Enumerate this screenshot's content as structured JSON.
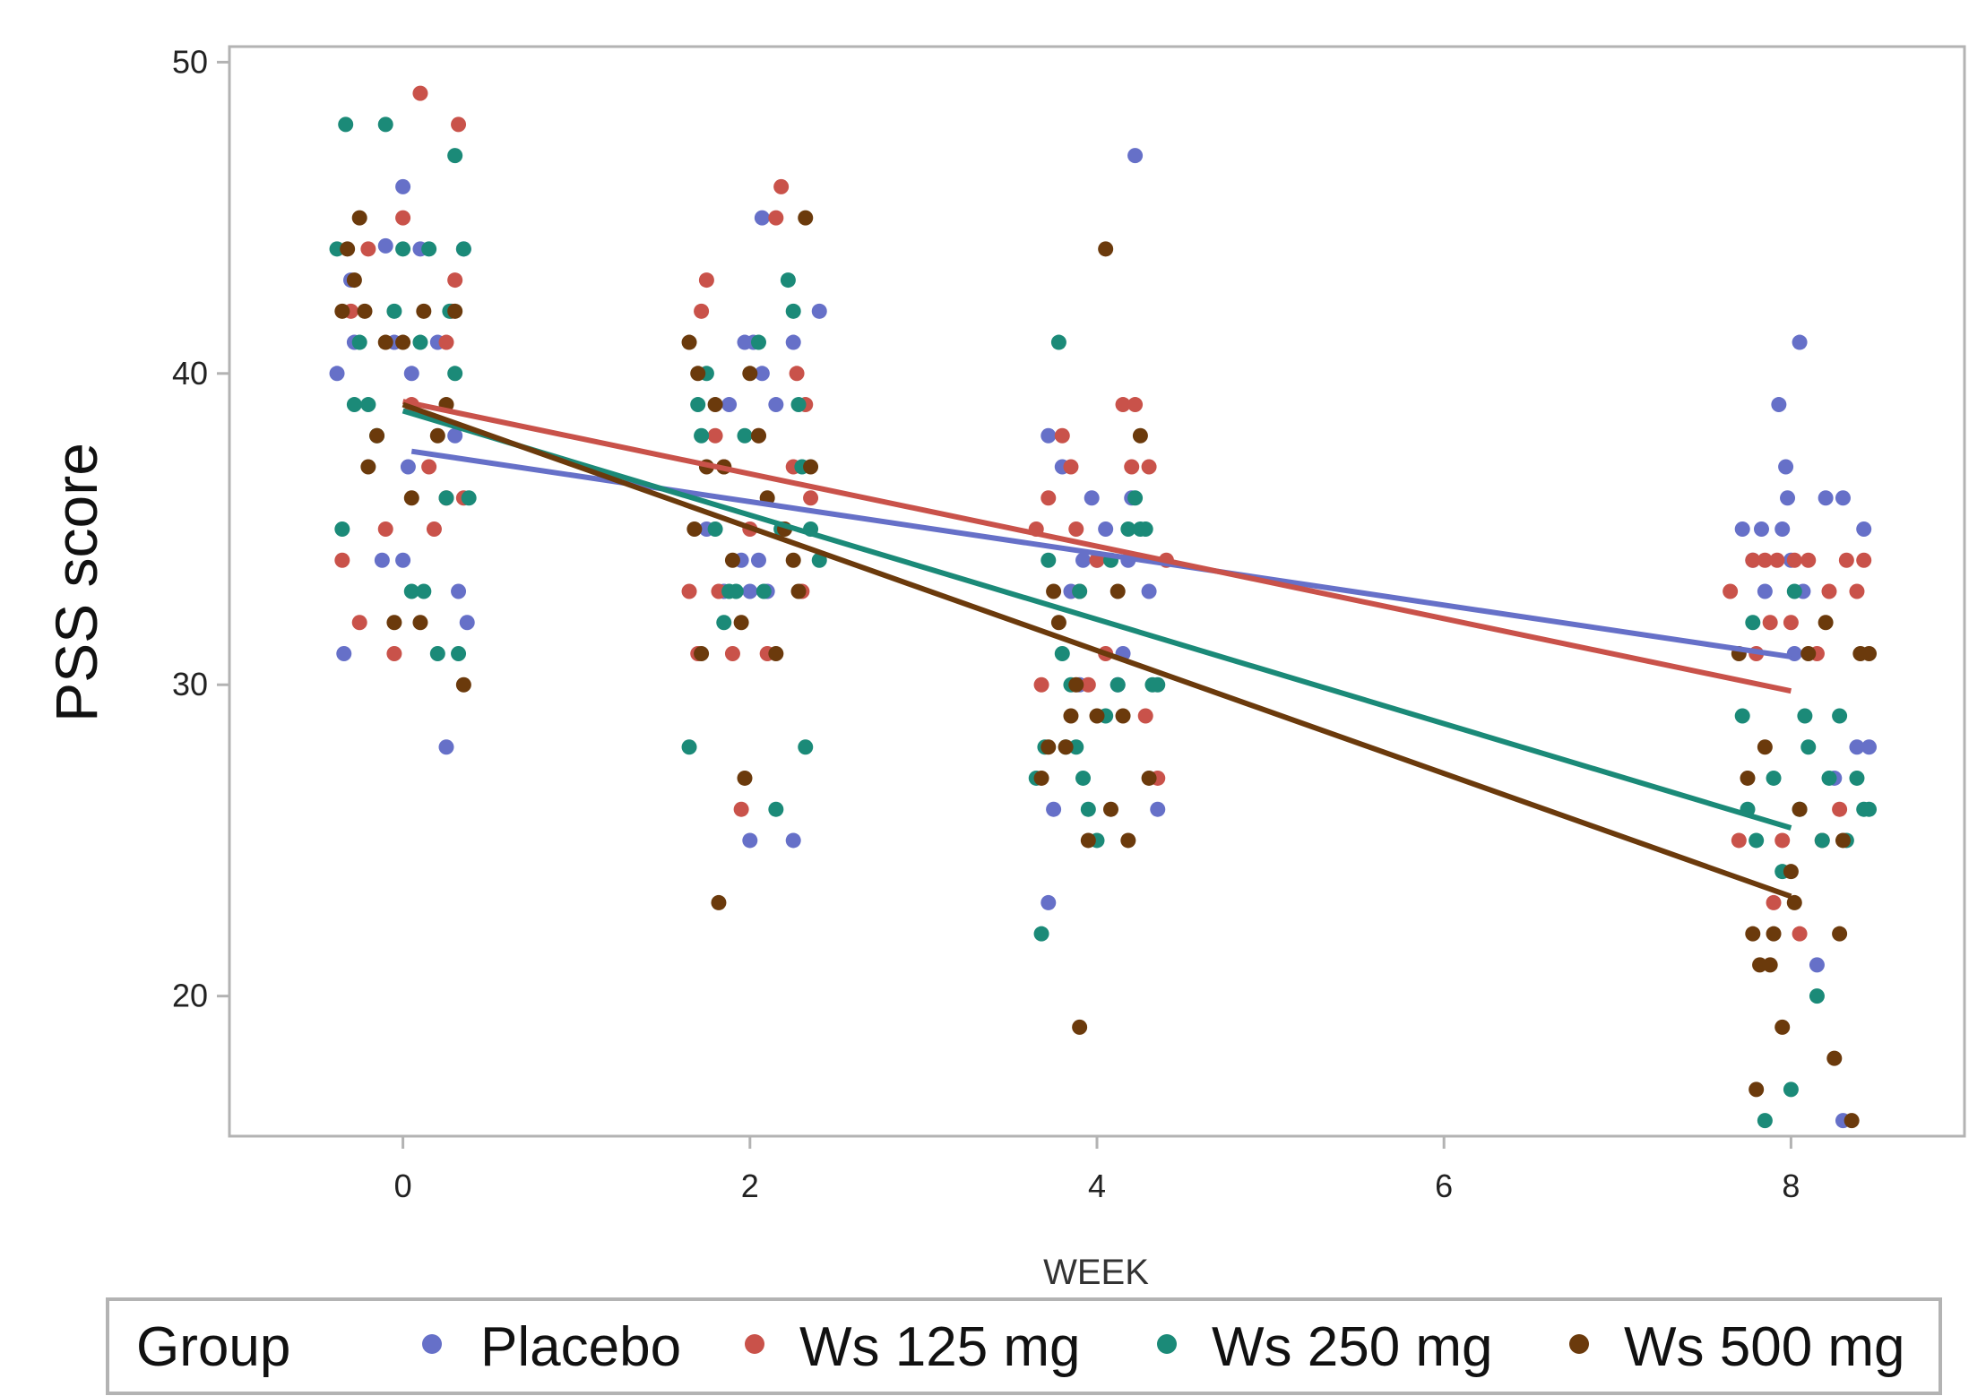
{
  "chart_data": {
    "type": "scatter",
    "xlabel": "WEEK",
    "ylabel": "PSS score",
    "xlim": [
      -1,
      9
    ],
    "ylim": [
      15.5,
      50.5
    ],
    "x_ticks": [
      "0",
      "2",
      "4",
      "6",
      "8"
    ],
    "y_ticks": [
      "20",
      "30",
      "40",
      "50"
    ],
    "grid": false,
    "legend": {
      "title": "Group",
      "placement": "bottom",
      "entries": [
        "Placebo",
        "Ws 125 mg",
        "Ws 250 mg",
        "Ws 500 mg"
      ]
    },
    "series": [
      {
        "name": "Placebo",
        "color": "#6670c8",
        "fit": [
          [
            0.05,
            37.5
          ],
          [
            8.0,
            30.9
          ]
        ],
        "points": [
          [
            -0.38,
            40
          ],
          [
            -0.34,
            31
          ],
          [
            -0.3,
            43
          ],
          [
            -0.28,
            41
          ],
          [
            -0.12,
            34
          ],
          [
            -0.1,
            44.1
          ],
          [
            -0.05,
            41
          ],
          [
            0.0,
            34
          ],
          [
            0.0,
            46
          ],
          [
            0.03,
            37
          ],
          [
            0.05,
            40
          ],
          [
            0.1,
            44
          ],
          [
            0.2,
            41
          ],
          [
            0.25,
            28
          ],
          [
            0.3,
            38
          ],
          [
            0.32,
            33
          ],
          [
            0.37,
            32
          ],
          [
            0.35,
            44
          ],
          [
            1.75,
            35
          ],
          [
            1.85,
            33
          ],
          [
            1.88,
            39
          ],
          [
            1.95,
            34
          ],
          [
            1.97,
            41
          ],
          [
            2.0,
            33
          ],
          [
            2.0,
            25
          ],
          [
            2.02,
            41
          ],
          [
            2.05,
            34
          ],
          [
            2.07,
            40
          ],
          [
            2.07,
            45
          ],
          [
            2.1,
            33
          ],
          [
            2.15,
            39
          ],
          [
            2.25,
            41
          ],
          [
            2.25,
            25
          ],
          [
            2.4,
            42
          ],
          [
            3.72,
            38
          ],
          [
            3.75,
            26
          ],
          [
            3.72,
            23
          ],
          [
            3.8,
            37
          ],
          [
            3.85,
            33
          ],
          [
            3.9,
            30
          ],
          [
            3.92,
            34
          ],
          [
            3.97,
            36
          ],
          [
            4.0,
            34
          ],
          [
            4.05,
            35
          ],
          [
            4.12,
            30
          ],
          [
            4.15,
            31
          ],
          [
            4.2,
            36
          ],
          [
            4.22,
            47
          ],
          [
            4.3,
            33
          ],
          [
            4.35,
            26
          ],
          [
            4.18,
            34
          ],
          [
            7.72,
            35
          ],
          [
            7.78,
            34
          ],
          [
            7.83,
            35
          ],
          [
            7.85,
            33
          ],
          [
            7.93,
            39
          ],
          [
            7.95,
            35
          ],
          [
            7.97,
            37
          ],
          [
            7.98,
            36
          ],
          [
            8.0,
            34
          ],
          [
            8.02,
            31
          ],
          [
            8.05,
            41
          ],
          [
            8.07,
            33
          ],
          [
            8.15,
            21
          ],
          [
            8.2,
            36
          ],
          [
            8.25,
            27
          ],
          [
            8.3,
            36
          ],
          [
            8.3,
            16
          ],
          [
            8.38,
            28
          ],
          [
            8.42,
            35
          ],
          [
            8.45,
            28
          ]
        ]
      },
      {
        "name": "Ws 125 mg",
        "color": "#c9524a",
        "fit": [
          [
            0.0,
            39.1
          ],
          [
            8.0,
            29.8
          ]
        ],
        "points": [
          [
            -0.35,
            34
          ],
          [
            -0.3,
            42
          ],
          [
            -0.25,
            32
          ],
          [
            -0.2,
            44
          ],
          [
            -0.1,
            35
          ],
          [
            -0.05,
            31
          ],
          [
            0.0,
            45
          ],
          [
            0.05,
            39
          ],
          [
            0.1,
            49
          ],
          [
            0.15,
            37
          ],
          [
            0.18,
            35
          ],
          [
            0.25,
            36
          ],
          [
            0.25,
            41
          ],
          [
            0.28,
            42
          ],
          [
            0.3,
            43
          ],
          [
            0.32,
            48
          ],
          [
            0.35,
            36
          ],
          [
            1.65,
            33
          ],
          [
            1.7,
            31
          ],
          [
            1.72,
            42
          ],
          [
            1.75,
            43
          ],
          [
            1.8,
            38
          ],
          [
            1.82,
            33
          ],
          [
            1.85,
            37
          ],
          [
            1.9,
            31
          ],
          [
            1.95,
            26
          ],
          [
            2.0,
            35
          ],
          [
            2.05,
            38
          ],
          [
            2.1,
            31
          ],
          [
            2.15,
            45
          ],
          [
            2.18,
            46
          ],
          [
            2.25,
            37
          ],
          [
            2.27,
            40
          ],
          [
            2.3,
            33
          ],
          [
            2.32,
            39
          ],
          [
            2.35,
            36
          ],
          [
            3.65,
            35
          ],
          [
            3.68,
            30
          ],
          [
            3.72,
            36
          ],
          [
            3.8,
            38
          ],
          [
            3.85,
            37
          ],
          [
            3.88,
            35
          ],
          [
            3.9,
            33
          ],
          [
            3.95,
            30
          ],
          [
            4.0,
            34
          ],
          [
            4.05,
            31
          ],
          [
            4.15,
            39
          ],
          [
            4.2,
            37
          ],
          [
            4.22,
            39
          ],
          [
            4.28,
            29
          ],
          [
            4.3,
            37
          ],
          [
            4.35,
            27
          ],
          [
            4.4,
            34
          ],
          [
            7.65,
            33
          ],
          [
            7.7,
            25
          ],
          [
            7.78,
            34
          ],
          [
            7.8,
            31
          ],
          [
            7.85,
            34
          ],
          [
            7.88,
            32
          ],
          [
            7.9,
            23
          ],
          [
            7.92,
            34
          ],
          [
            7.95,
            25
          ],
          [
            8.0,
            32
          ],
          [
            8.02,
            34
          ],
          [
            8.05,
            22
          ],
          [
            8.1,
            34
          ],
          [
            8.15,
            31
          ],
          [
            8.18,
            25
          ],
          [
            8.22,
            33
          ],
          [
            8.28,
            26
          ],
          [
            8.32,
            34
          ],
          [
            8.38,
            33
          ],
          [
            8.42,
            34
          ]
        ]
      },
      {
        "name": "Ws 250 mg",
        "color": "#1b8a78",
        "fit": [
          [
            0.0,
            38.8
          ],
          [
            8.0,
            25.4
          ]
        ],
        "points": [
          [
            -0.38,
            44
          ],
          [
            -0.35,
            35
          ],
          [
            -0.33,
            48
          ],
          [
            -0.28,
            39
          ],
          [
            -0.25,
            41
          ],
          [
            -0.2,
            39
          ],
          [
            -0.15,
            38
          ],
          [
            -0.1,
            48
          ],
          [
            -0.05,
            42
          ],
          [
            0.0,
            44
          ],
          [
            0.05,
            33
          ],
          [
            0.1,
            41
          ],
          [
            0.12,
            33
          ],
          [
            0.15,
            44
          ],
          [
            0.2,
            31
          ],
          [
            0.25,
            36
          ],
          [
            0.27,
            42
          ],
          [
            0.3,
            47
          ],
          [
            0.3,
            40
          ],
          [
            0.32,
            31
          ],
          [
            0.35,
            44
          ],
          [
            0.38,
            36
          ],
          [
            1.65,
            28
          ],
          [
            1.7,
            39
          ],
          [
            1.72,
            38
          ],
          [
            1.75,
            40
          ],
          [
            1.8,
            35
          ],
          [
            1.85,
            32
          ],
          [
            1.88,
            33
          ],
          [
            1.92,
            33
          ],
          [
            1.97,
            38
          ],
          [
            2.05,
            41
          ],
          [
            2.08,
            33
          ],
          [
            2.15,
            26
          ],
          [
            2.18,
            35
          ],
          [
            2.22,
            43
          ],
          [
            2.25,
            42
          ],
          [
            2.28,
            39
          ],
          [
            2.3,
            37
          ],
          [
            2.32,
            28
          ],
          [
            2.35,
            35
          ],
          [
            2.4,
            34
          ],
          [
            3.65,
            27
          ],
          [
            3.68,
            22
          ],
          [
            3.7,
            28
          ],
          [
            3.72,
            34
          ],
          [
            3.78,
            41
          ],
          [
            3.8,
            31
          ],
          [
            3.82,
            28
          ],
          [
            3.85,
            30
          ],
          [
            3.88,
            28
          ],
          [
            3.9,
            33
          ],
          [
            3.92,
            27
          ],
          [
            3.95,
            26
          ],
          [
            4.0,
            25
          ],
          [
            4.05,
            29
          ],
          [
            4.08,
            34
          ],
          [
            4.12,
            30
          ],
          [
            4.18,
            35
          ],
          [
            4.22,
            36
          ],
          [
            4.25,
            35
          ],
          [
            4.28,
            35
          ],
          [
            4.32,
            30
          ],
          [
            4.35,
            30
          ],
          [
            7.72,
            29
          ],
          [
            7.75,
            26
          ],
          [
            7.78,
            32
          ],
          [
            7.8,
            25
          ],
          [
            7.85,
            16
          ],
          [
            7.9,
            27
          ],
          [
            7.95,
            24
          ],
          [
            8.0,
            17
          ],
          [
            8.02,
            33
          ],
          [
            8.05,
            26
          ],
          [
            8.08,
            29
          ],
          [
            8.1,
            28
          ],
          [
            8.15,
            20
          ],
          [
            8.18,
            25
          ],
          [
            8.22,
            27
          ],
          [
            8.28,
            29
          ],
          [
            8.32,
            25
          ],
          [
            8.38,
            27
          ],
          [
            8.42,
            26
          ],
          [
            8.45,
            26
          ]
        ]
      },
      {
        "name": "Ws 500 mg",
        "color": "#6b3a0c",
        "fit": [
          [
            0.0,
            39.0
          ],
          [
            8.0,
            23.2
          ]
        ],
        "points": [
          [
            -0.35,
            42
          ],
          [
            -0.32,
            44
          ],
          [
            -0.28,
            43
          ],
          [
            -0.25,
            45
          ],
          [
            -0.22,
            42
          ],
          [
            -0.2,
            37
          ],
          [
            -0.15,
            38
          ],
          [
            -0.1,
            41
          ],
          [
            -0.05,
            32
          ],
          [
            0.0,
            41
          ],
          [
            0.05,
            36
          ],
          [
            0.1,
            32
          ],
          [
            0.12,
            42
          ],
          [
            0.2,
            38
          ],
          [
            0.25,
            39
          ],
          [
            0.3,
            42
          ],
          [
            0.35,
            30
          ],
          [
            1.65,
            41
          ],
          [
            1.68,
            35
          ],
          [
            1.7,
            40
          ],
          [
            1.72,
            31
          ],
          [
            1.75,
            37
          ],
          [
            1.8,
            39
          ],
          [
            1.82,
            23
          ],
          [
            1.85,
            37
          ],
          [
            1.9,
            34
          ],
          [
            1.95,
            32
          ],
          [
            1.97,
            27
          ],
          [
            2.0,
            40
          ],
          [
            2.05,
            38
          ],
          [
            2.1,
            36
          ],
          [
            2.15,
            31
          ],
          [
            2.2,
            35
          ],
          [
            2.25,
            34
          ],
          [
            2.28,
            33
          ],
          [
            2.32,
            45
          ],
          [
            2.35,
            37
          ],
          [
            3.68,
            27
          ],
          [
            3.72,
            28
          ],
          [
            3.75,
            33
          ],
          [
            3.78,
            32
          ],
          [
            3.82,
            28
          ],
          [
            3.85,
            29
          ],
          [
            3.88,
            30
          ],
          [
            3.9,
            19
          ],
          [
            3.95,
            25
          ],
          [
            4.0,
            29
          ],
          [
            4.05,
            44
          ],
          [
            4.08,
            26
          ],
          [
            4.12,
            33
          ],
          [
            4.15,
            29
          ],
          [
            4.18,
            25
          ],
          [
            4.25,
            38
          ],
          [
            4.3,
            27
          ],
          [
            7.7,
            31
          ],
          [
            7.75,
            27
          ],
          [
            7.78,
            22
          ],
          [
            7.8,
            17
          ],
          [
            7.82,
            21
          ],
          [
            7.85,
            28
          ],
          [
            7.88,
            21
          ],
          [
            7.9,
            22
          ],
          [
            7.95,
            19
          ],
          [
            8.0,
            24
          ],
          [
            8.02,
            23
          ],
          [
            8.05,
            26
          ],
          [
            8.1,
            31
          ],
          [
            8.2,
            32
          ],
          [
            8.25,
            18
          ],
          [
            8.28,
            22
          ],
          [
            8.3,
            25
          ],
          [
            8.35,
            16
          ],
          [
            8.4,
            31
          ],
          [
            8.45,
            31
          ]
        ]
      }
    ]
  }
}
